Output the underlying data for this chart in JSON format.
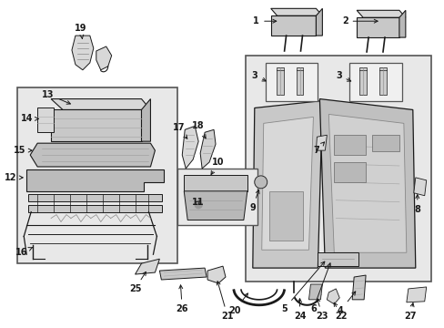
{
  "background_color": "#ffffff",
  "fig_width": 4.89,
  "fig_height": 3.6,
  "dpi": 100,
  "dark": "#1a1a1a",
  "gray_fill": "#d8d8d8",
  "light_fill": "#ebebeb",
  "box_fill": "#e8e8e8",
  "label_fs": 7.0,
  "label_bold": true
}
